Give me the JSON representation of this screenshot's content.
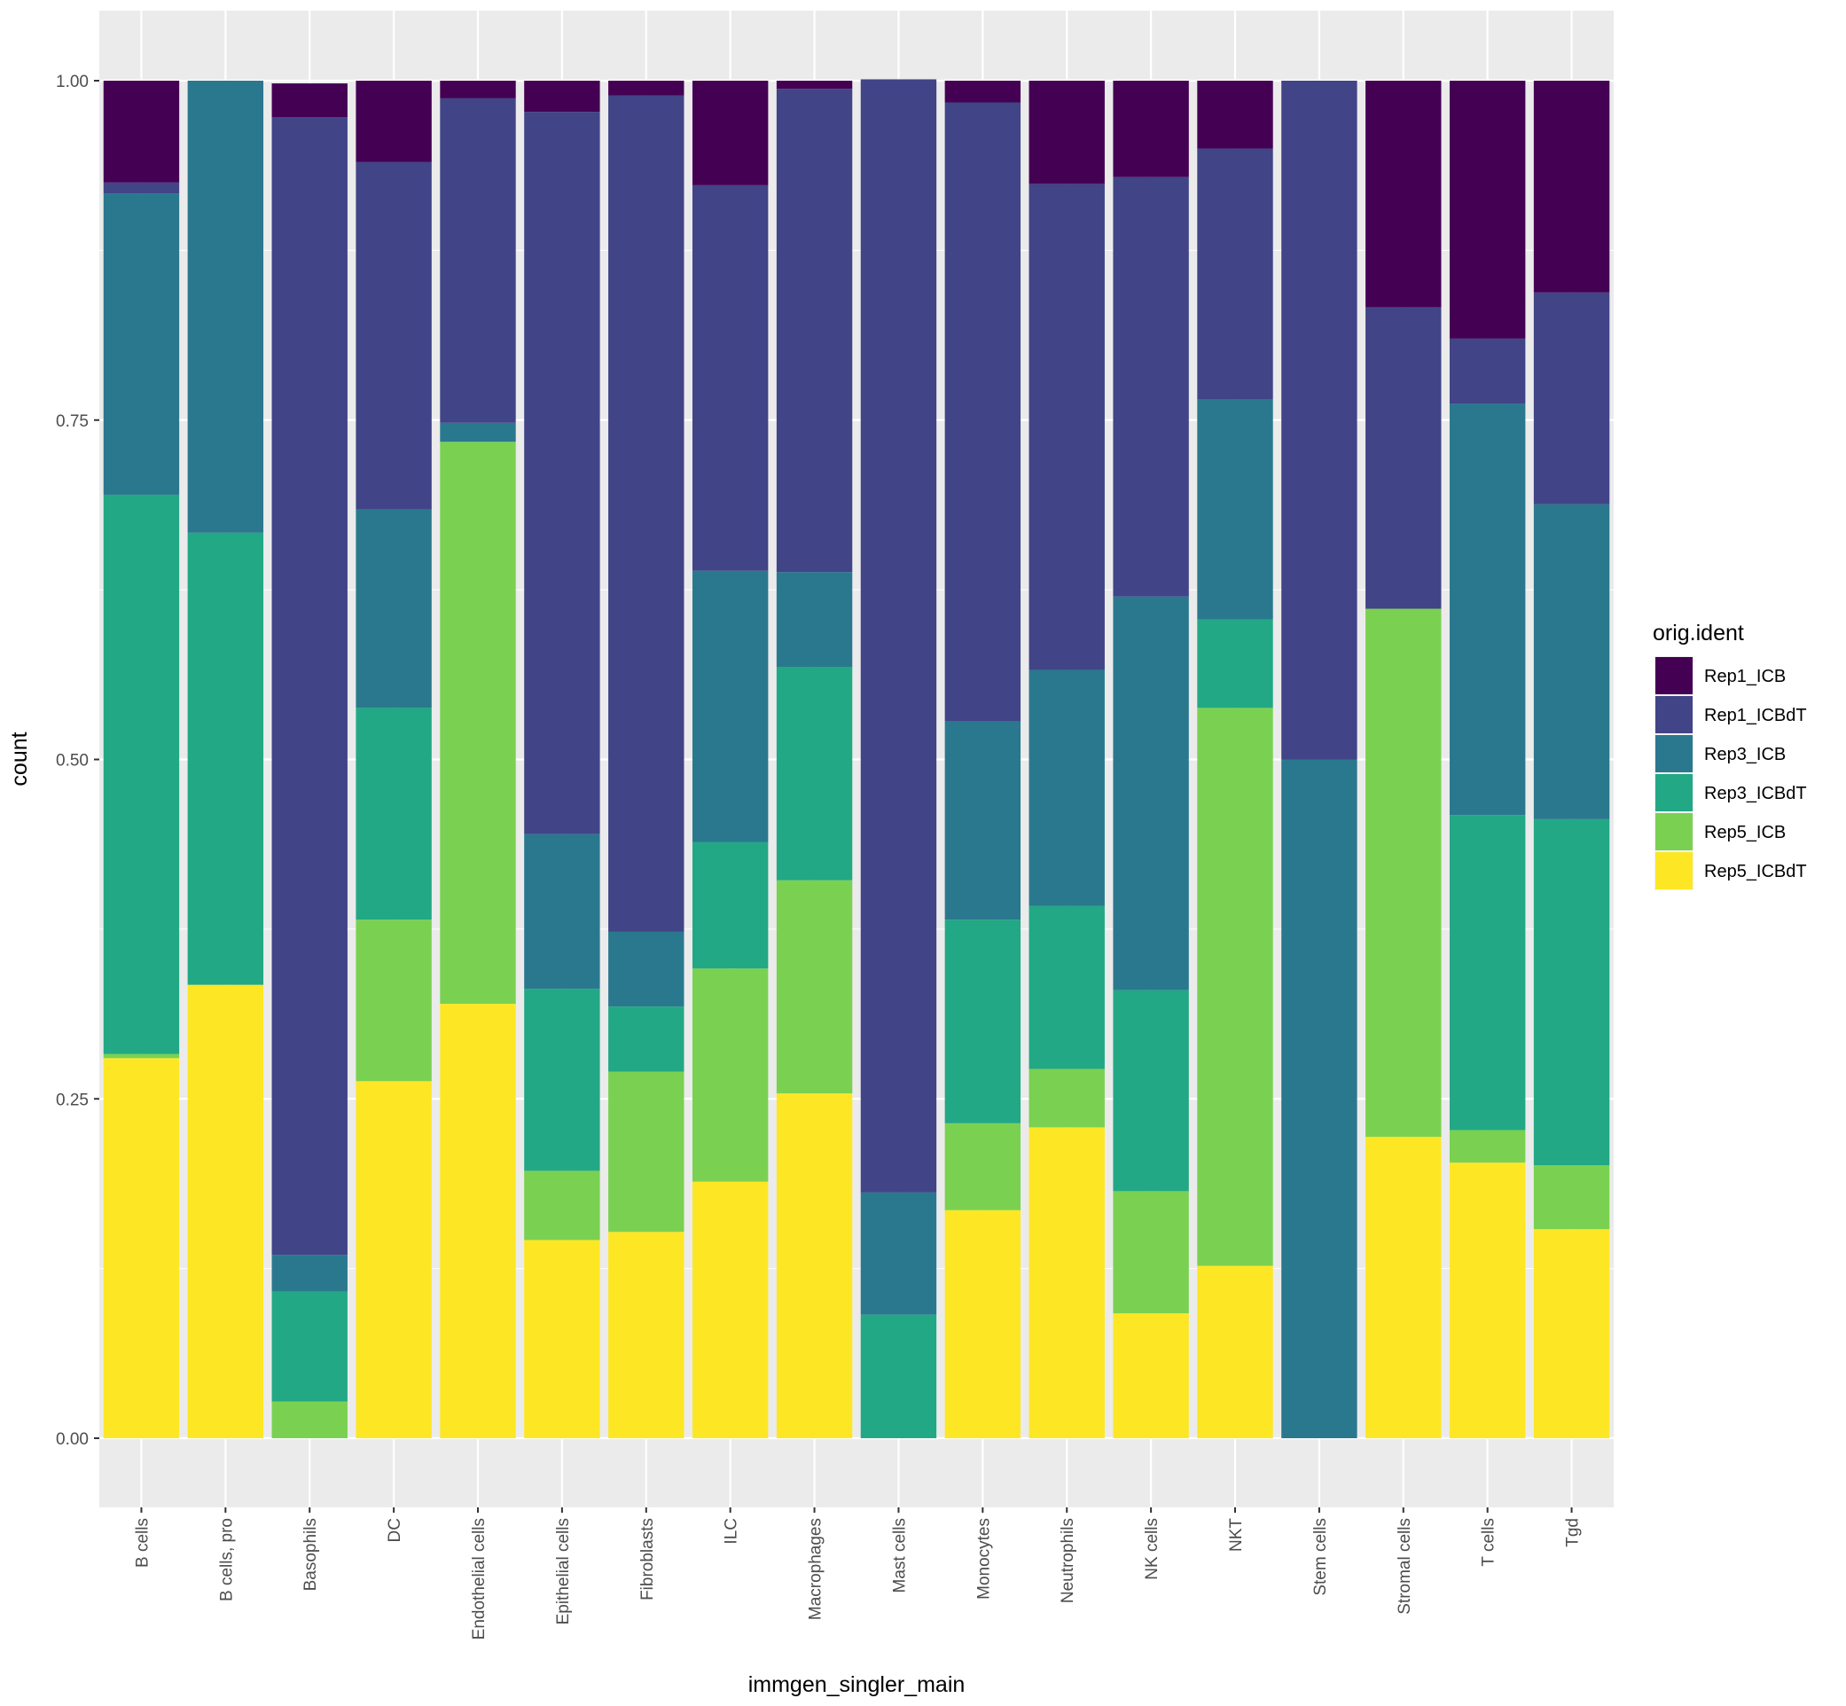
{
  "chart_data": {
    "type": "bar",
    "stacked": true,
    "position": "fill",
    "xlabel": "immgen_singler_main",
    "ylabel": "count",
    "ylim": [
      -0.045,
      1.045
    ],
    "yticks": [
      "0.00",
      "0.25",
      "0.50",
      "0.75",
      "1.00"
    ],
    "ytick_values": [
      0,
      0.25,
      0.5,
      0.75,
      1.0
    ],
    "categories": [
      "B cells",
      "B cells, pro",
      "Basophils",
      "DC",
      "Endothelial cells",
      "Epithelial cells",
      "Fibroblasts",
      "ILC",
      "Macrophages",
      "Mast cells",
      "Monocytes",
      "Neutrophils",
      "NK cells",
      "NKT",
      "Stem cells",
      "Stromal cells",
      "T cells",
      "Tgd"
    ],
    "legend_title": "orig.ident",
    "legend_position": "right",
    "series": [
      {
        "name": "Rep1_ICB",
        "color": "#440154",
        "values": [
          0.075,
          0,
          0.025,
          0.06,
          0.013,
          0.023,
          0.011,
          0.077,
          0.006,
          0,
          0.016,
          0.076,
          0.071,
          0.05,
          0,
          0.167,
          0.19,
          0.156
        ]
      },
      {
        "name": "Rep1_ICBdT",
        "color": "#414487",
        "values": [
          0.008,
          0,
          0.838,
          0.256,
          0.239,
          0.532,
          0.616,
          0.284,
          0.356,
          0.82,
          0.456,
          0.358,
          0.309,
          0.185,
          0.5,
          0.222,
          0.048,
          0.156
        ]
      },
      {
        "name": "Rep3_ICB",
        "color": "#2A788E",
        "values": [
          0.222,
          0.333,
          0.027,
          0.146,
          0.014,
          0.114,
          0.055,
          0.2,
          0.07,
          0.09,
          0.146,
          0.174,
          0.29,
          0.162,
          0.5,
          0,
          0.303,
          0.232
        ]
      },
      {
        "name": "Rep3_ICBdT",
        "color": "#22A884",
        "values": [
          0.412,
          0.333,
          0.081,
          0.156,
          0,
          0.134,
          0.048,
          0.093,
          0.157,
          0.091,
          0.15,
          0.12,
          0.148,
          0.065,
          0,
          0,
          0.232,
          0.255
        ]
      },
      {
        "name": "Rep5_ICB",
        "color": "#7AD151",
        "values": [
          0.003,
          0,
          0.027,
          0.119,
          0.414,
          0.051,
          0.118,
          0.157,
          0.157,
          0,
          0.064,
          0.043,
          0.09,
          0.411,
          0,
          0.389,
          0.024,
          0.047
        ]
      },
      {
        "name": "Rep5_ICBdT",
        "color": "#FDE725",
        "values": [
          0.28,
          0.334,
          0,
          0.263,
          0.32,
          0.146,
          0.152,
          0.189,
          0.254,
          0,
          0.168,
          0.229,
          0.092,
          0.127,
          0,
          0.222,
          0.203,
          0.154
        ]
      }
    ]
  }
}
